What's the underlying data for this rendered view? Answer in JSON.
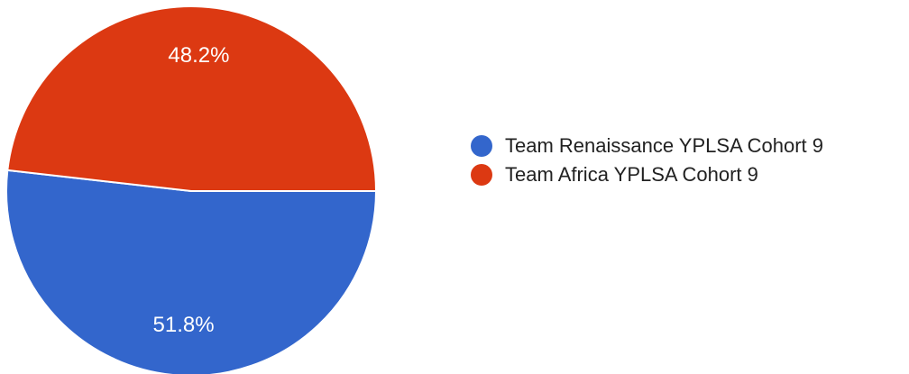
{
  "chart_data": {
    "type": "pie",
    "title": "",
    "slices": [
      {
        "name": "Team Renaissance YPLSA Cohort 9",
        "value": 51.8,
        "label": "51.8%",
        "color": "#3366cc"
      },
      {
        "name": "Team Africa YPLSA Cohort 9",
        "value": 48.2,
        "label": "48.2%",
        "color": "#dc3912"
      }
    ],
    "legend_position": "right"
  }
}
